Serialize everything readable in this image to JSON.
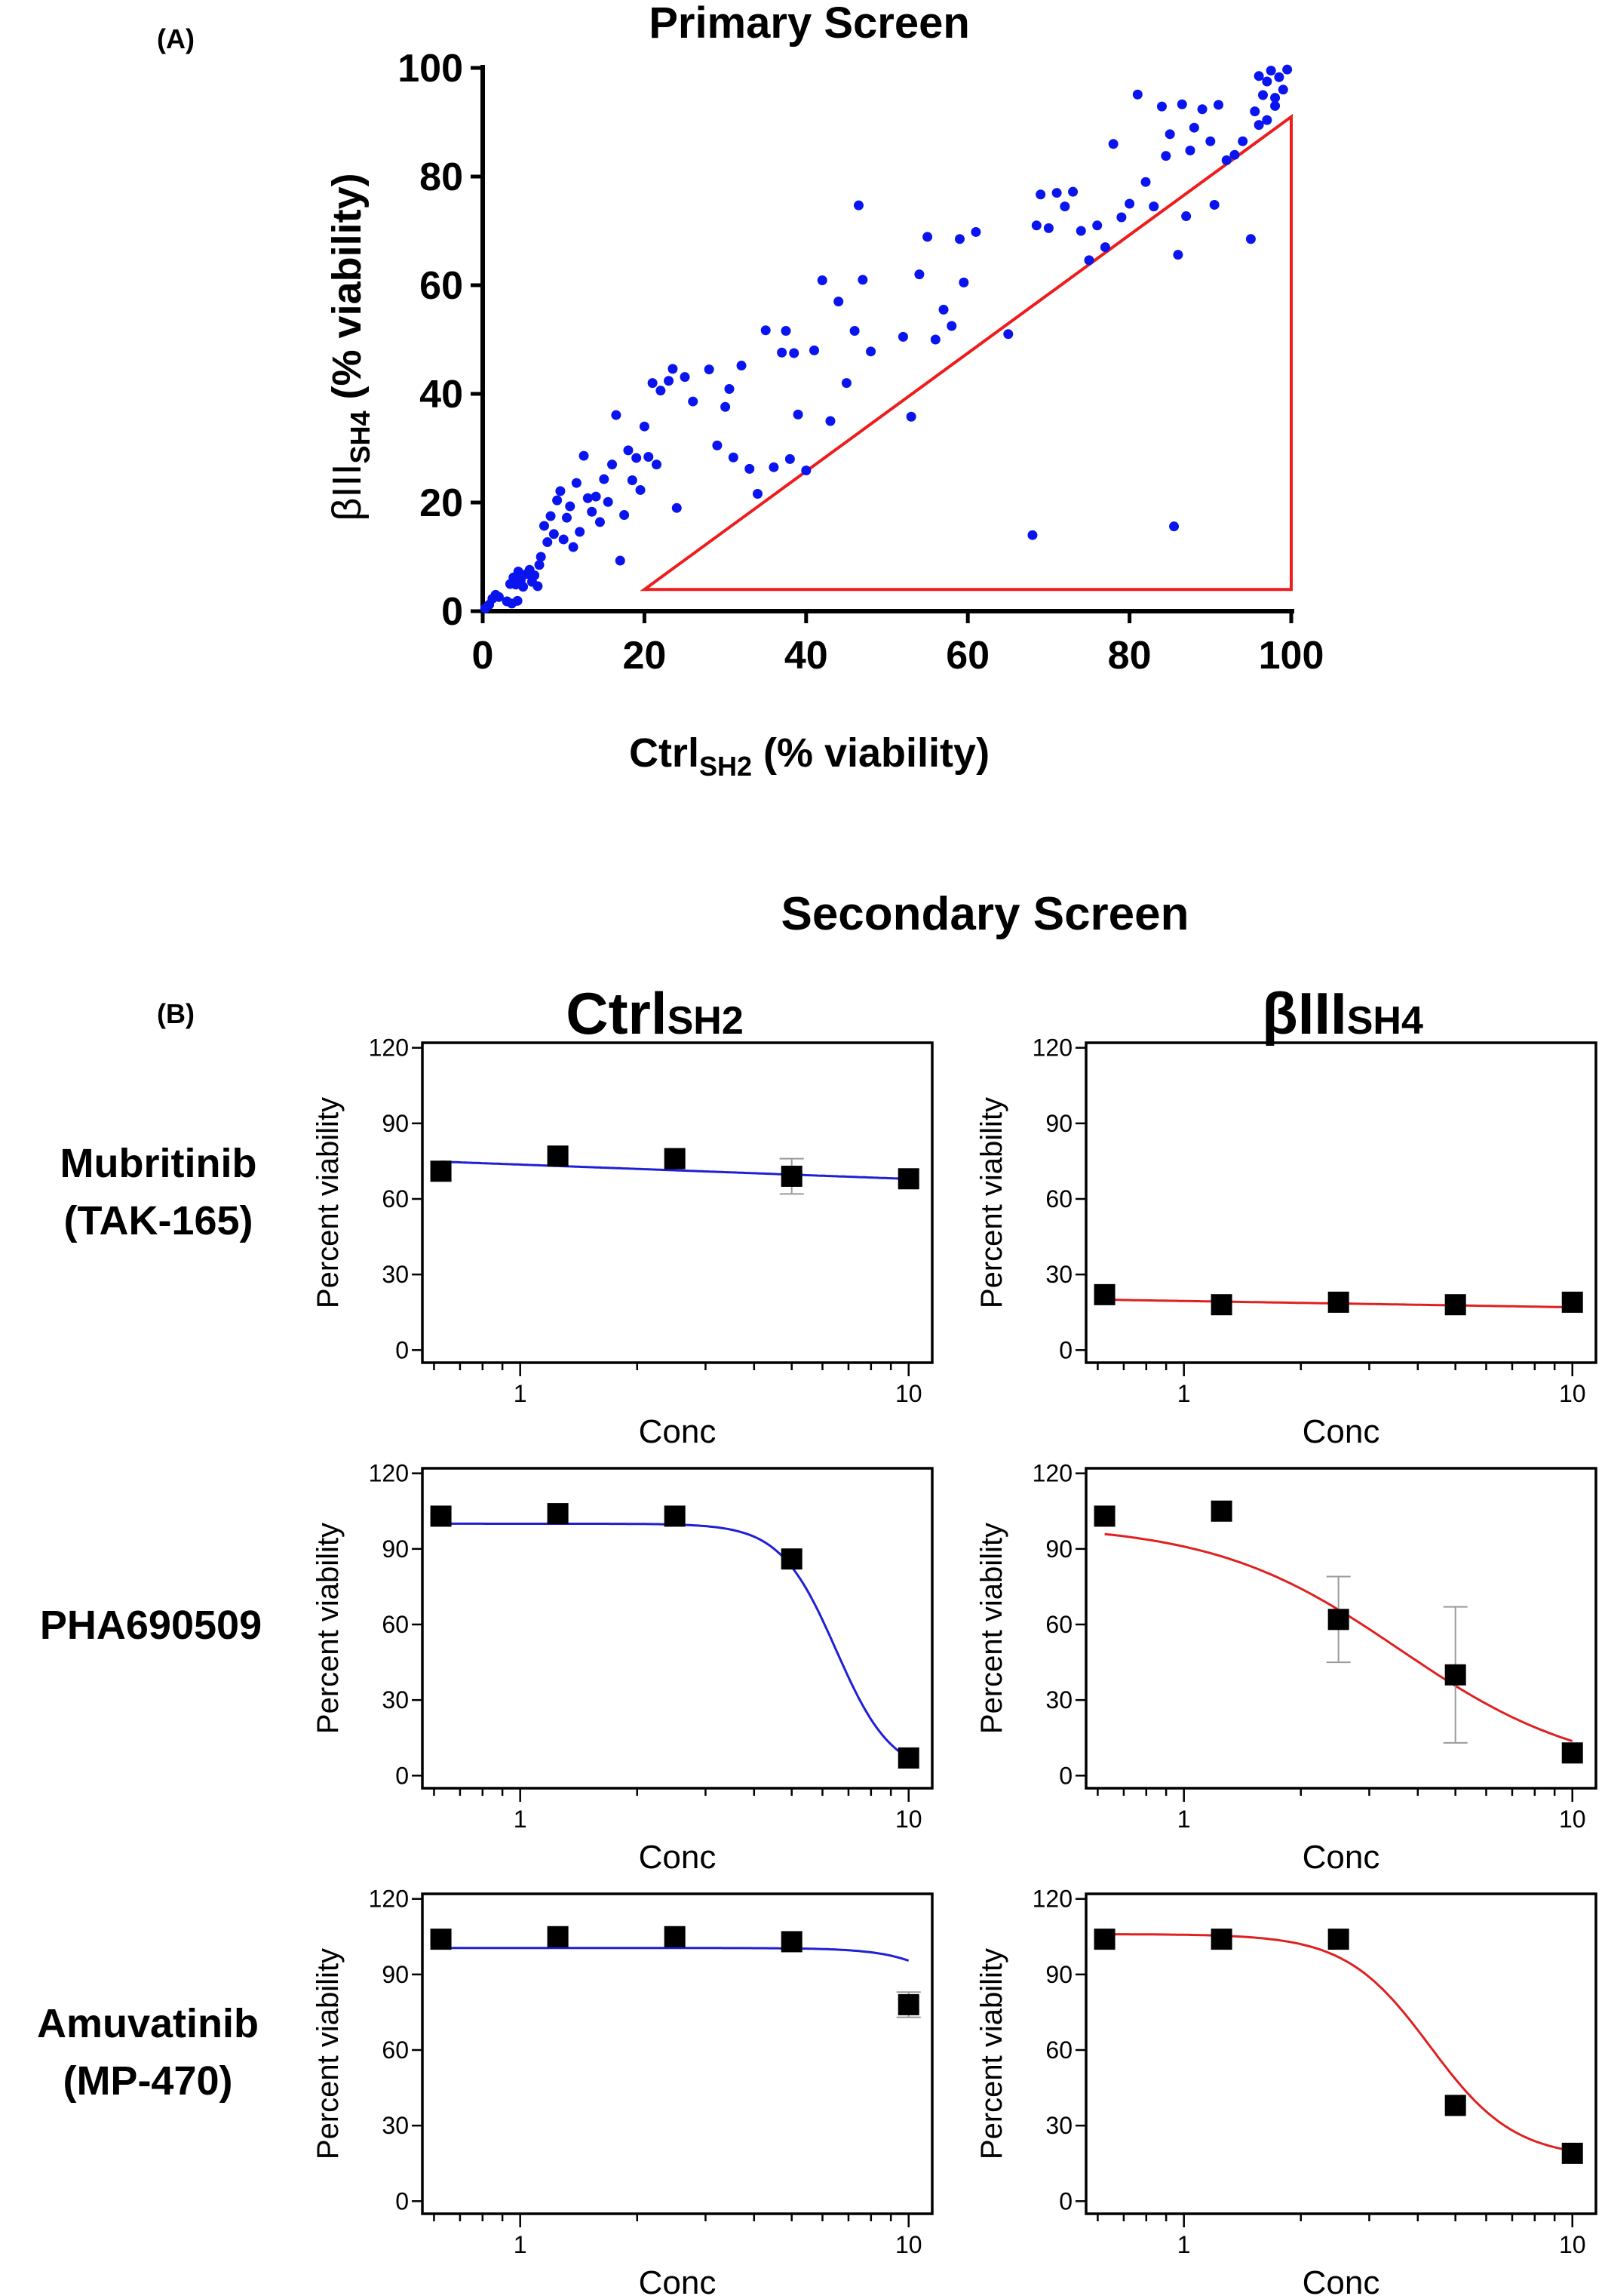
{
  "panel_a": {
    "label": "(A)",
    "title": "Primary Screen",
    "xlabel_main": "Ctrl",
    "xlabel_sub": "SH2",
    "xlabel_tail": " (% viability)",
    "ylabel_main": "βIII",
    "ylabel_sub": "SH4",
    "ylabel_tail": " (% viability)"
  },
  "panel_b": {
    "label": "(B)",
    "title": "Secondary Screen",
    "col_left_main": "Ctrl",
    "col_left_sub": "SH2",
    "col_right_main": "βIII",
    "col_right_sub": "SH4",
    "rows": [
      {
        "line1": "Mubritinib",
        "line2": "(TAK-165)"
      },
      {
        "line1": "PHA690509",
        "line2": ""
      },
      {
        "line1": "Amuvatinib",
        "line2": "(MP-470)"
      }
    ]
  },
  "colors": {
    "ctrl": "#1f1fd6",
    "betaIII": "#e02020",
    "scatter": "#0a14ee",
    "marker": "#000000"
  },
  "chart_data": [
    {
      "id": "primary",
      "type": "scatter",
      "title": "Primary Screen",
      "xlabel": "Ctrl SH2 (% viability)",
      "ylabel": "βIII SH4 (% viability)",
      "xlim": [
        0,
        100
      ],
      "ylim": [
        0,
        100
      ],
      "xticks": [
        0,
        20,
        40,
        60,
        80,
        100
      ],
      "yticks": [
        0,
        20,
        40,
        60,
        80,
        100
      ],
      "selection_triangle": [
        [
          20,
          4
        ],
        [
          100,
          4
        ],
        [
          100,
          91
        ]
      ],
      "points": [
        [
          0.3,
          0.5
        ],
        [
          0.8,
          1.2
        ],
        [
          1.2,
          2.3
        ],
        [
          1.6,
          3.0
        ],
        [
          2.0,
          2.6
        ],
        [
          3.0,
          1.8
        ],
        [
          3.4,
          5.0
        ],
        [
          3.8,
          6.2
        ],
        [
          4.1,
          4.9
        ],
        [
          4.4,
          7.3
        ],
        [
          4.7,
          5.7
        ],
        [
          5.0,
          4.5
        ],
        [
          5.4,
          6.8
        ],
        [
          5.8,
          7.6
        ],
        [
          6.1,
          5.4
        ],
        [
          6.4,
          6.6
        ],
        [
          6.8,
          4.6
        ],
        [
          3.6,
          1.4
        ],
        [
          4.3,
          1.9
        ],
        [
          7.0,
          8.5
        ],
        [
          7.2,
          10.0
        ],
        [
          7.6,
          15.7
        ],
        [
          8.0,
          12.7
        ],
        [
          8.4,
          17.5
        ],
        [
          8.8,
          14.2
        ],
        [
          9.2,
          20.4
        ],
        [
          9.6,
          22.1
        ],
        [
          10.0,
          13.2
        ],
        [
          10.4,
          17.2
        ],
        [
          10.8,
          19.3
        ],
        [
          11.2,
          11.8
        ],
        [
          11.6,
          23.6
        ],
        [
          12.0,
          14.6
        ],
        [
          12.5,
          28.6
        ],
        [
          13.0,
          20.8
        ],
        [
          13.5,
          18.3
        ],
        [
          14.0,
          21.1
        ],
        [
          14.5,
          16.4
        ],
        [
          15.0,
          24.3
        ],
        [
          15.5,
          20.1
        ],
        [
          16.0,
          27.0
        ],
        [
          16.5,
          36.1
        ],
        [
          17.0,
          9.3
        ],
        [
          17.5,
          17.7
        ],
        [
          18.0,
          29.6
        ],
        [
          18.5,
          24.1
        ],
        [
          19.0,
          28.2
        ],
        [
          19.5,
          22.3
        ],
        [
          20.0,
          34.0
        ],
        [
          20.5,
          28.4
        ],
        [
          21.0,
          42.0
        ],
        [
          21.5,
          27.0
        ],
        [
          22.0,
          40.6
        ],
        [
          23.0,
          42.4
        ],
        [
          23.5,
          44.6
        ],
        [
          24.0,
          19.0
        ],
        [
          25.0,
          43.1
        ],
        [
          26.0,
          38.6
        ],
        [
          28.0,
          44.5
        ],
        [
          29.0,
          30.5
        ],
        [
          30.0,
          37.6
        ],
        [
          30.5,
          40.9
        ],
        [
          31.0,
          28.3
        ],
        [
          32.0,
          45.2
        ],
        [
          33.0,
          26.2
        ],
        [
          34.0,
          21.6
        ],
        [
          35.0,
          51.7
        ],
        [
          36.0,
          26.5
        ],
        [
          37.0,
          47.6
        ],
        [
          37.5,
          51.6
        ],
        [
          38.0,
          28.0
        ],
        [
          38.5,
          47.5
        ],
        [
          39.0,
          36.2
        ],
        [
          40.0,
          25.9
        ],
        [
          41.0,
          48.0
        ],
        [
          42.0,
          60.9
        ],
        [
          43.0,
          35.0
        ],
        [
          44.0,
          57.0
        ],
        [
          45.0,
          42.0
        ],
        [
          46.0,
          51.6
        ],
        [
          46.5,
          74.7
        ],
        [
          47.0,
          61.0
        ],
        [
          48.0,
          47.8
        ],
        [
          52.0,
          50.5
        ],
        [
          53.0,
          35.8
        ],
        [
          54.0,
          62.0
        ],
        [
          55.0,
          68.9
        ],
        [
          56.0,
          50.0
        ],
        [
          57.0,
          55.5
        ],
        [
          58.0,
          52.5
        ],
        [
          59.0,
          68.5
        ],
        [
          59.5,
          60.5
        ],
        [
          61.0,
          69.8
        ],
        [
          65.0,
          51.0
        ],
        [
          68.0,
          14.0
        ],
        [
          68.5,
          71.0
        ],
        [
          69.0,
          76.7
        ],
        [
          70.0,
          70.5
        ],
        [
          71.0,
          77.0
        ],
        [
          72.0,
          74.5
        ],
        [
          73.0,
          77.2
        ],
        [
          74.0,
          70.0
        ],
        [
          75.0,
          64.6
        ],
        [
          76.0,
          71.0
        ],
        [
          77.0,
          67.0
        ],
        [
          78.0,
          86.0
        ],
        [
          79.0,
          72.5
        ],
        [
          80.0,
          75.0
        ],
        [
          81.0,
          95.1
        ],
        [
          82.0,
          79.0
        ],
        [
          83.0,
          74.5
        ],
        [
          84.0,
          92.9
        ],
        [
          84.5,
          83.8
        ],
        [
          85.0,
          87.8
        ],
        [
          85.5,
          15.6
        ],
        [
          86.0,
          65.6
        ],
        [
          86.5,
          93.3
        ],
        [
          87.0,
          72.7
        ],
        [
          87.5,
          84.8
        ],
        [
          88.0,
          89.0
        ],
        [
          89.0,
          92.4
        ],
        [
          90.0,
          86.5
        ],
        [
          90.5,
          74.8
        ],
        [
          91.0,
          93.2
        ],
        [
          92.0,
          83.0
        ],
        [
          93.0,
          84.0
        ],
        [
          94.0,
          86.5
        ],
        [
          95.0,
          68.5
        ],
        [
          95.5,
          92.0
        ],
        [
          96.0,
          89.5
        ],
        [
          96.5,
          95.0
        ],
        [
          97.0,
          97.5
        ],
        [
          97.5,
          99.5
        ],
        [
          98.0,
          93.0
        ],
        [
          98.5,
          98.3
        ],
        [
          99.0,
          96.0
        ],
        [
          99.5,
          99.7
        ],
        [
          96.0,
          98.5
        ],
        [
          97.0,
          90.4
        ],
        [
          98.0,
          94.5
        ]
      ]
    },
    {
      "id": "mubritinib-ctrl",
      "type": "line",
      "xlabel": "Conc",
      "ylabel": "Percent viability",
      "xscale": "log",
      "xticks": [
        1,
        10
      ],
      "yticks": [
        0,
        30,
        60,
        90,
        120
      ],
      "ylim": [
        0,
        120
      ],
      "color": "ctrl",
      "x": [
        0.625,
        1.25,
        2.5,
        5,
        10
      ],
      "y": [
        71,
        77,
        76,
        69,
        68
      ],
      "err": [
        0,
        0,
        0,
        7,
        0
      ],
      "fit": {
        "top": 74.8,
        "slope_per_log10": -5.7
      }
    },
    {
      "id": "mubritinib-betaIII",
      "type": "line",
      "xlabel": "Conc",
      "ylabel": "Percent viability",
      "xscale": "log",
      "xticks": [
        1,
        10
      ],
      "yticks": [
        0,
        30,
        60,
        90,
        120
      ],
      "ylim": [
        0,
        120
      ],
      "color": "betaIII",
      "x": [
        0.625,
        1.25,
        2.5,
        5,
        10
      ],
      "y": [
        22,
        18,
        19,
        18,
        19
      ],
      "err": [
        0,
        0,
        0,
        0,
        0
      ],
      "fit": {
        "top": 20.0,
        "slope_per_log10": -2.5
      }
    },
    {
      "id": "pha690509-ctrl",
      "type": "line",
      "xlabel": "Conc",
      "ylabel": "Percent viability",
      "xscale": "log",
      "xticks": [
        1,
        10
      ],
      "yticks": [
        0,
        30,
        60,
        90,
        120
      ],
      "ylim": [
        0,
        120
      ],
      "color": "ctrl",
      "x": [
        0.625,
        1.25,
        2.5,
        5,
        10
      ],
      "y": [
        103,
        104,
        103,
        86,
        7
      ],
      "err": [
        0,
        0,
        0,
        0,
        0
      ],
      "fit": {
        "top": 100,
        "bottom": 0,
        "ic50": 6.5,
        "hill": 6
      }
    },
    {
      "id": "pha690509-betaIII",
      "type": "line",
      "xlabel": "Conc",
      "ylabel": "Percent viability",
      "xscale": "log",
      "xticks": [
        1,
        10
      ],
      "yticks": [
        0,
        30,
        60,
        90,
        120
      ],
      "ylim": [
        0,
        120
      ],
      "color": "betaIII",
      "x": [
        0.625,
        1.25,
        2.5,
        5,
        10
      ],
      "y": [
        103,
        105,
        62,
        40,
        9
      ],
      "err": [
        0,
        0,
        17,
        27,
        0
      ],
      "fit": {
        "top": 100,
        "bottom": 0,
        "ic50": 3.6,
        "hill": 1.8
      }
    },
    {
      "id": "amuvatinib-ctrl",
      "type": "line",
      "xlabel": "Conc",
      "ylabel": "Percent viability",
      "xscale": "log",
      "xticks": [
        1,
        10
      ],
      "yticks": [
        0,
        30,
        60,
        90,
        120
      ],
      "ylim": [
        0,
        120
      ],
      "color": "ctrl",
      "x": [
        0.625,
        1.25,
        2.5,
        5,
        10
      ],
      "y": [
        104,
        105,
        105,
        103,
        78
      ],
      "err": [
        0,
        0,
        0,
        0,
        5
      ],
      "fit": {
        "top": 100.5,
        "bottom": 0,
        "ic50": 18,
        "hill": 5
      }
    },
    {
      "id": "amuvatinib-betaIII",
      "type": "line",
      "xlabel": "Conc",
      "ylabel": "Percent viability",
      "xscale": "log",
      "xticks": [
        1,
        10
      ],
      "yticks": [
        0,
        30,
        60,
        90,
        120
      ],
      "ylim": [
        0,
        120
      ],
      "color": "betaIII",
      "x": [
        0.625,
        1.25,
        2.5,
        5,
        10
      ],
      "y": [
        104,
        104,
        104,
        38,
        19
      ],
      "err": [
        0,
        0,
        0,
        0,
        0
      ],
      "fit": {
        "top": 106,
        "bottom": 17,
        "ic50": 4.3,
        "hill": 4
      }
    }
  ]
}
